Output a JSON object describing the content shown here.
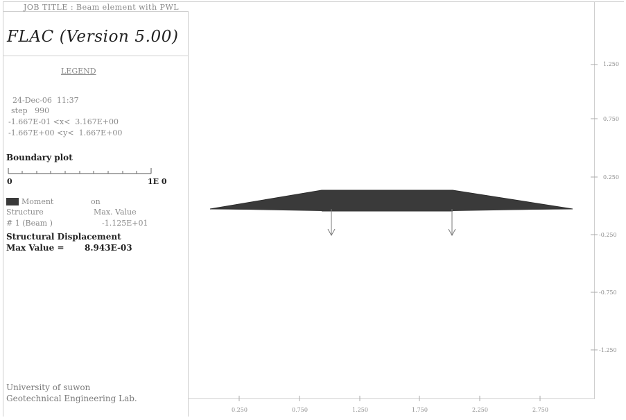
{
  "job_title": "JOB TITLE : Beam element with PWL",
  "app_title": "FLAC (Version 5.00)",
  "legend": {
    "title": "LEGEND",
    "date_line": "24-Dec-06  11:37",
    "step_line": "step   990",
    "x_range_line": "-1.667E-01 <x<  3.167E+00",
    "y_range_line": "-1.667E+00 <y<  1.667E+00"
  },
  "boundary": {
    "title": "Boundary plot",
    "scale_left": "0",
    "scale_right": "1E  0"
  },
  "moment": {
    "label": "Moment",
    "state": "on",
    "structure_header": "Structure",
    "max_value_header": "Max. Value",
    "beam_entry": "# 1 (Beam )",
    "beam_value": "-1.125E+01",
    "color": "#3a3a3a"
  },
  "displacement": {
    "title": "Structural Displacement",
    "max_label": "Max Value =",
    "max_value": "8.943E-03"
  },
  "footer": {
    "line1": "University of suwon",
    "line2": "Geotechnical Engineering Lab."
  },
  "x_axis_ticks": [
    "0.250",
    "0.750",
    "1.250",
    "1.750",
    "2.250",
    "2.750"
  ],
  "y_axis_ticks": [
    "1.250",
    "0.750",
    "0.250",
    "-0.250",
    "-0.750",
    "-1.250"
  ],
  "diagram": {
    "fill_color": "#3a3a3a",
    "arrow_color": "#7a7a7a"
  }
}
